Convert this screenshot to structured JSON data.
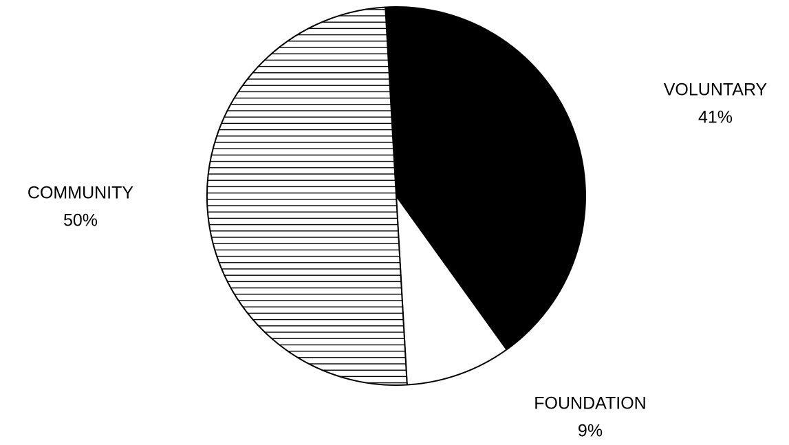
{
  "chart_data": {
    "type": "pie",
    "categories": [
      "VOLUNTARY",
      "FOUNDATION",
      "COMMUNITY"
    ],
    "values": [
      41,
      9,
      50
    ],
    "value_labels": [
      "41%",
      "9%",
      "50%"
    ],
    "colors": [
      "#000000",
      "#ffffff",
      "#000000"
    ],
    "hatched": [
      false,
      false,
      true
    ]
  }
}
